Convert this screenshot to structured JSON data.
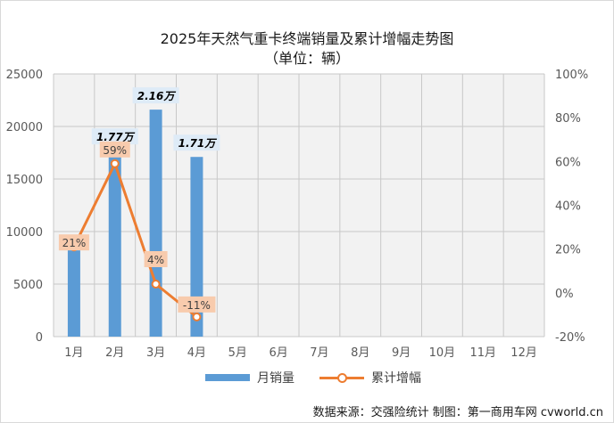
{
  "title_line1": "2025年天然气重卡终端销量及累计增幅走势图",
  "title_line2": "（单位：辆）",
  "source": "数据来源：交强险统计 制图：第一商用车网 cvworld.cn",
  "chart_data": {
    "type": "bar",
    "categories": [
      "1月",
      "2月",
      "3月",
      "4月",
      "5月",
      "6月",
      "7月",
      "8月",
      "9月",
      "10月",
      "11月",
      "12月"
    ],
    "series": [
      {
        "name": "月销量",
        "type": "bar",
        "axis": "left",
        "color": "#5b9bd5",
        "values": [
          8400,
          17700,
          21600,
          17100,
          null,
          null,
          null,
          null,
          null,
          null,
          null,
          null
        ],
        "labels": [
          "",
          "1.77万",
          "2.16万",
          "1.71万",
          "",
          "",
          "",
          "",
          "",
          "",
          "",
          ""
        ]
      },
      {
        "name": "累计增幅",
        "type": "line",
        "axis": "right",
        "color": "#ed7d31",
        "values": [
          21,
          59,
          4,
          -11,
          null,
          null,
          null,
          null,
          null,
          null,
          null,
          null
        ],
        "labels": [
          "21%",
          "59%",
          "4%",
          "-11%",
          "",
          "",
          "",
          "",
          "",
          "",
          "",
          ""
        ]
      }
    ],
    "y_left": {
      "min": 0,
      "max": 25000,
      "ticks": [
        "0",
        "5000",
        "10000",
        "15000",
        "20000",
        "25000"
      ]
    },
    "y_right": {
      "min": -20,
      "max": 100,
      "ticks": [
        "-20%",
        "0%",
        "20%",
        "40%",
        "60%",
        "80%",
        "100%"
      ]
    },
    "grid": true,
    "legend": "bottom",
    "plot_background": "#f2f2f2",
    "grid_color": "#c8c8c8",
    "bar_label_background": "#deebf7",
    "line_label_background": "#f8cbad"
  }
}
